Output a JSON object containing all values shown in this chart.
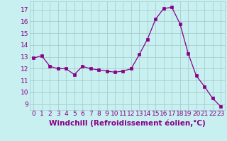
{
  "x": [
    0,
    1,
    2,
    3,
    4,
    5,
    6,
    7,
    8,
    9,
    10,
    11,
    12,
    13,
    14,
    15,
    16,
    17,
    18,
    19,
    20,
    21,
    22,
    23
  ],
  "y": [
    12.9,
    13.1,
    12.2,
    12.0,
    12.0,
    11.5,
    12.2,
    12.0,
    11.9,
    11.8,
    11.7,
    11.8,
    12.0,
    13.2,
    14.5,
    16.2,
    17.1,
    17.2,
    15.8,
    13.3,
    11.4,
    10.5,
    9.5,
    8.8
  ],
  "line_color": "#880088",
  "marker": "s",
  "marker_size": 2.5,
  "bg_color": "#c8f0f0",
  "grid_color": "#a0c8c8",
  "xlabel": "Windchill (Refroidissement éolien,°C)",
  "xlabel_color": "#880088",
  "tick_color": "#880088",
  "ylim": [
    8.5,
    17.7
  ],
  "xlim": [
    -0.5,
    23.5
  ],
  "yticks": [
    9,
    10,
    11,
    12,
    13,
    14,
    15,
    16,
    17
  ],
  "xticks": [
    0,
    1,
    2,
    3,
    4,
    5,
    6,
    7,
    8,
    9,
    10,
    11,
    12,
    13,
    14,
    15,
    16,
    17,
    18,
    19,
    20,
    21,
    22,
    23
  ],
  "tick_fontsize": 6.5,
  "xlabel_fontsize": 7.5
}
